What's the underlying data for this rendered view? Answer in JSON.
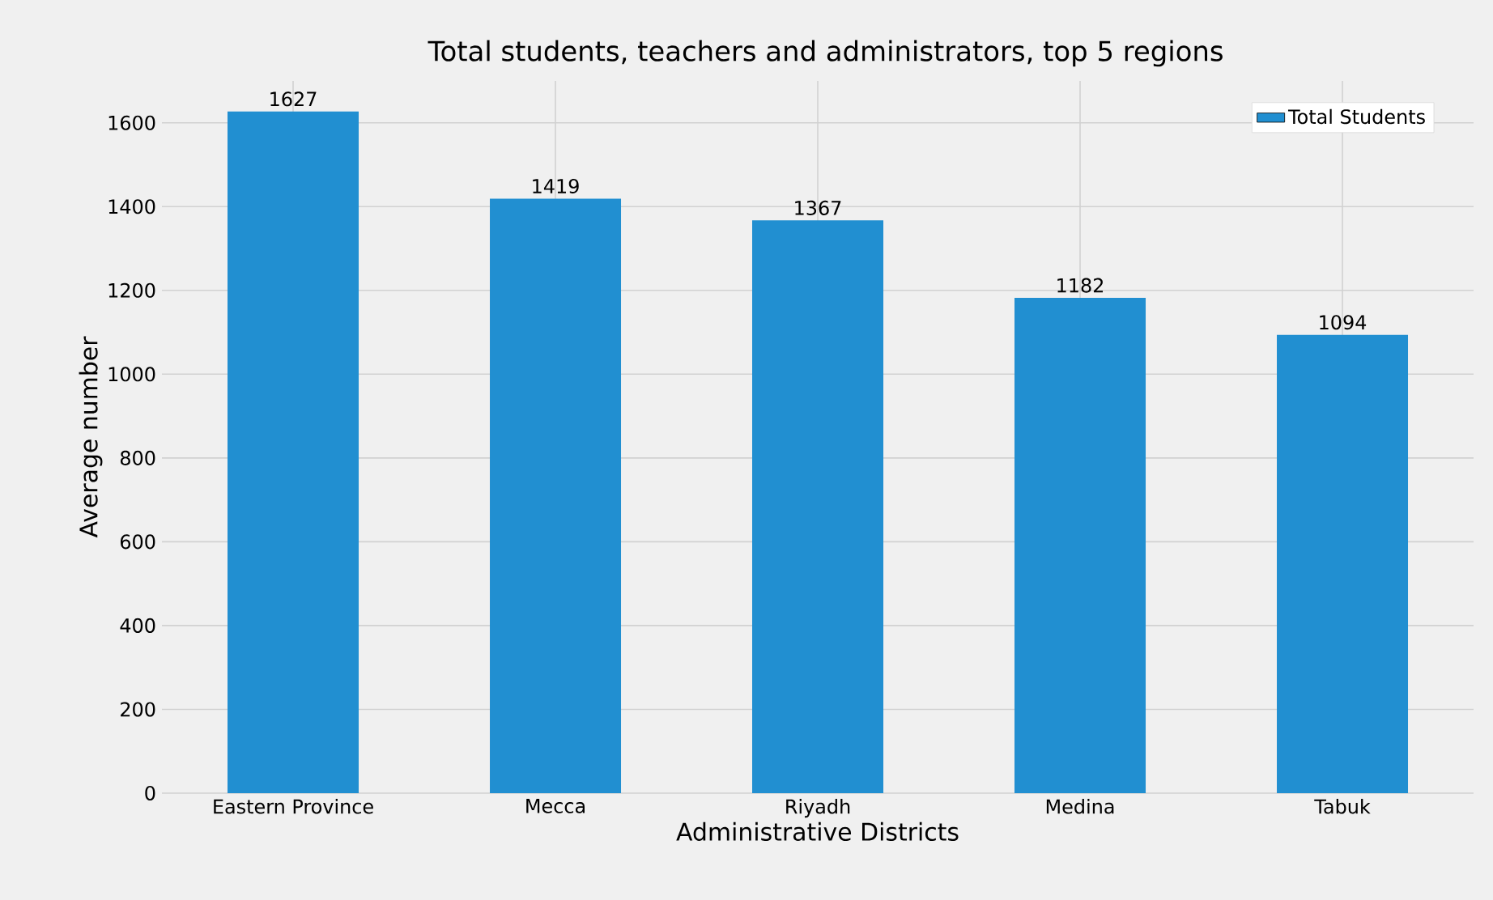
{
  "chart_data": {
    "type": "bar",
    "title": "Total students, teachers and administrators, top 5 regions",
    "xlabel": "Administrative Districts",
    "ylabel": "Average number",
    "categories": [
      "Eastern Province",
      "Mecca",
      "Riyadh",
      "Medina",
      "Tabuk"
    ],
    "series": [
      {
        "name": "Total Students",
        "color": "#218fd1",
        "values": [
          1627,
          1419,
          1367,
          1182,
          1094
        ]
      }
    ],
    "ylim": [
      0,
      1700
    ],
    "yticks": [
      0,
      200,
      400,
      600,
      800,
      1000,
      1200,
      1400,
      1600
    ],
    "grid": true,
    "legend": "top right",
    "data_labels": true
  }
}
